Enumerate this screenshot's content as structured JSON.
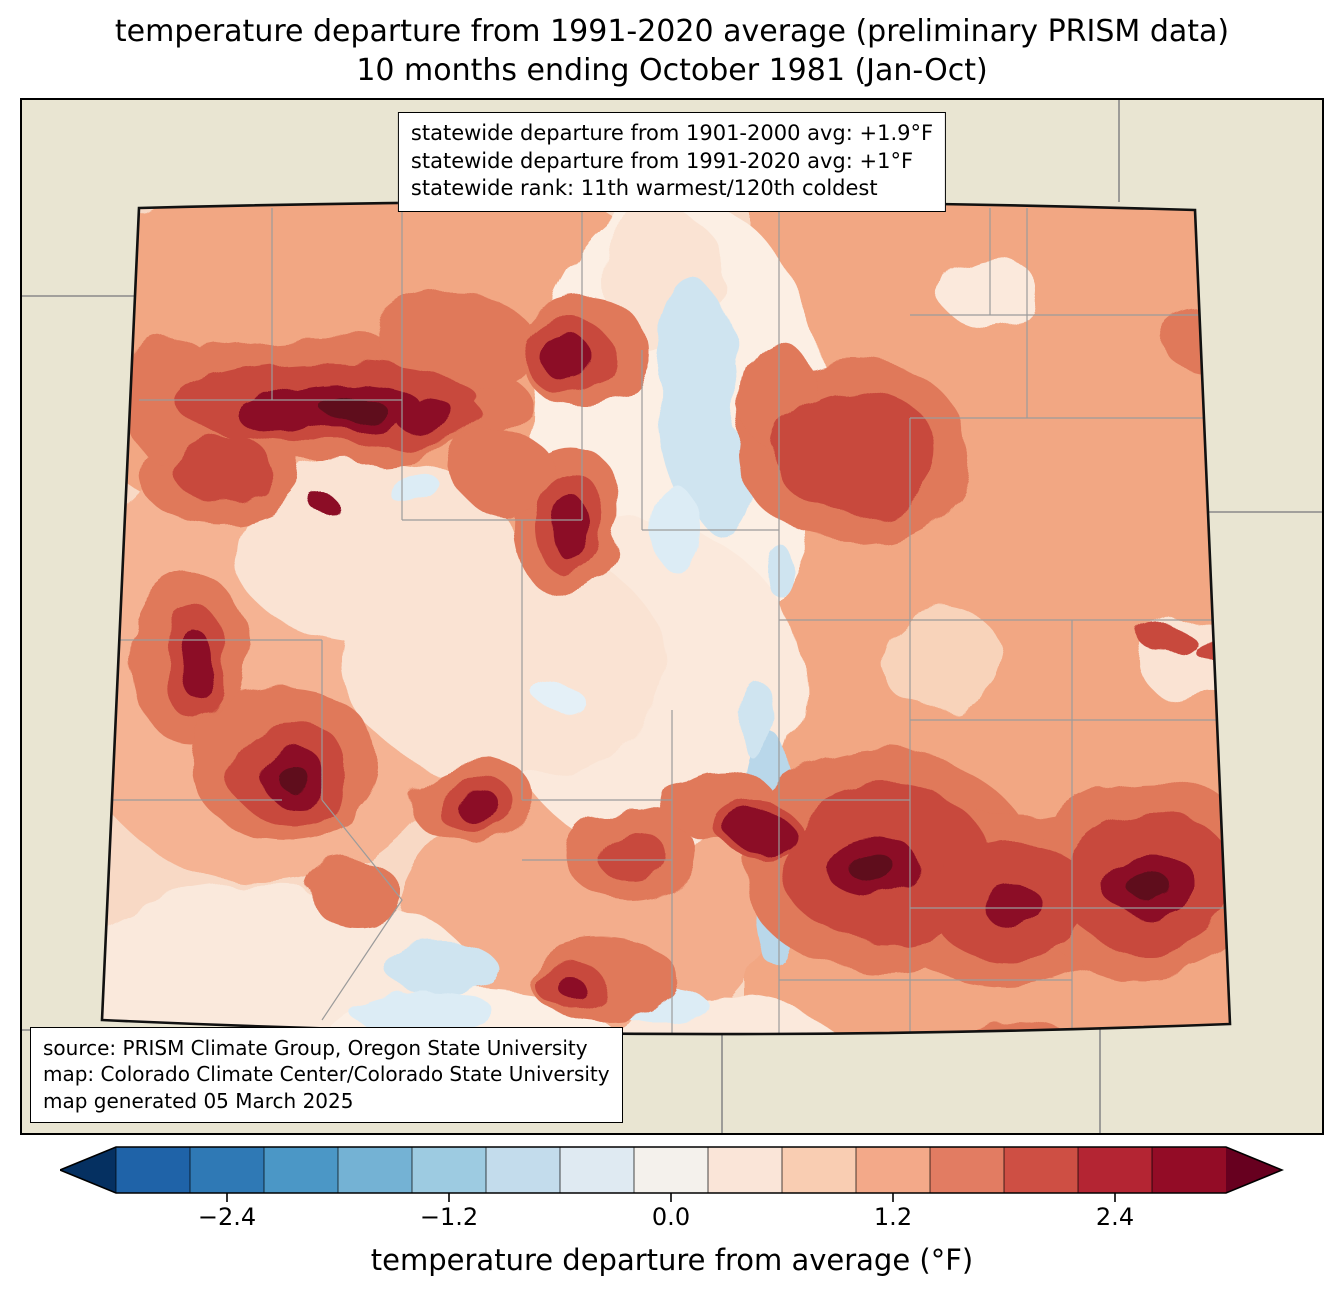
{
  "title": {
    "line1": "temperature departure from 1991-2020 average (preliminary PRISM data)",
    "line2": "10 months ending October 1981 (Jan-Oct)"
  },
  "stats_box": {
    "line1": "statewide departure from 1901-2000 avg: +1.9°F",
    "line2": "statewide departure from 1991-2020 avg: +1°F",
    "line3": "statewide rank: 11th warmest/120th coldest"
  },
  "source_box": {
    "line1": "source: PRISM Climate Group, Oregon State University",
    "line2": "map: Colorado Climate Center/Colorado State University",
    "line3": "map generated 05 March 2025"
  },
  "colorbar": {
    "label": "temperature departure from average (°F)",
    "range": [
      -3.0,
      3.0
    ],
    "arrow_left_color": "#053061",
    "arrow_right_color": "#67001f",
    "segment_colors": [
      "#1f63a8",
      "#2f79b5",
      "#4b97c6",
      "#74b2d4",
      "#9dcbe1",
      "#c3dcec",
      "#dfeaf2",
      "#f4f1ec",
      "#fae5d8",
      "#f9cdb2",
      "#f3a989",
      "#e27c62",
      "#ce4f44",
      "#b42533",
      "#930c26"
    ],
    "ticks": [
      {
        "label": "−2.4",
        "value": -2.4
      },
      {
        "label": "−1.2",
        "value": -1.2
      },
      {
        "label": "0.0",
        "value": 0.0
      },
      {
        "label": "1.2",
        "value": 1.2
      },
      {
        "label": "2.4",
        "value": 2.4
      }
    ]
  },
  "chart_data": {
    "type": "heatmap",
    "title": "temperature departure from 1991-2020 average (preliminary PRISM data)",
    "subtitle": "10 months ending October 1981 (Jan-Oct)",
    "region": "Colorado",
    "colorbar_label": "temperature departure from average (°F)",
    "colorbar_ticks": [
      -2.4,
      -1.2,
      0.0,
      1.2,
      2.4
    ],
    "colorbar_range": [
      -3.0,
      3.0
    ],
    "colormap": "blue-white-red diverging",
    "statistics": {
      "statewide_departure_from_1901_2000_avg_F": 1.9,
      "statewide_departure_from_1991_2020_avg_F": 1.0,
      "statewide_rank": "11th warmest/120th coldest"
    }
  }
}
